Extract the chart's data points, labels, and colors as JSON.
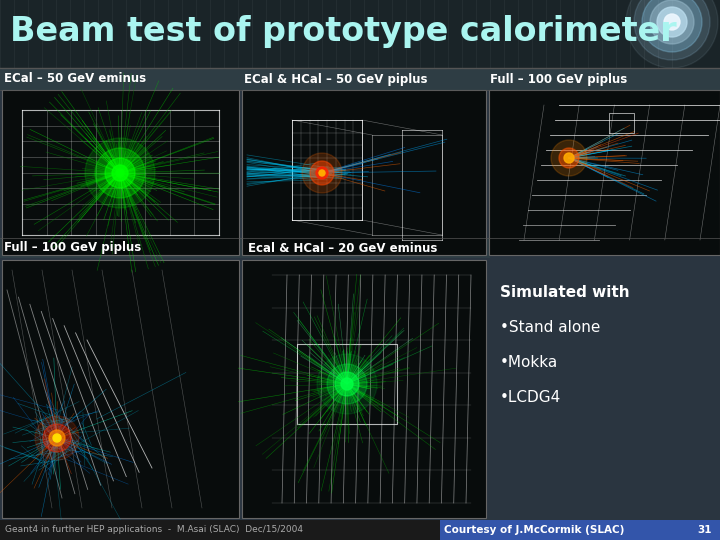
{
  "title": "Beam test of prototype calorimeter",
  "bg_color": "#2a3540",
  "title_bg": "#1e2a30",
  "title_text_color": "#aaf5f0",
  "label_bar_bg": "#2a3540",
  "label_bar_border": "#888888",
  "labels_top": [
    "ECal – 50 GeV eminus",
    "ECal & HCal – 50 GeV piplus",
    "Full – 100 GeV piplus"
  ],
  "labels_bottom": [
    "Full – 100 GeV piplus",
    "Ecal & HCal – 20 GeV eminus"
  ],
  "simulated_with": "Simulated with",
  "bullets": [
    "•Stand alone",
    "•Mokka",
    "•LCDG4"
  ],
  "footer_left": "Geant4 in further HEP applications  -  M.Asai (SLAC)  Dec/15/2004",
  "footer_right": "Courtesy of J.McCormik (SLAC)",
  "page_num": "31",
  "footer_bg_left": "#1a1a1a",
  "footer_bg_right": "#3355aa",
  "label_color": "#ffffff",
  "sim_color": "#ffffff",
  "bullet_color": "#ffffff",
  "footer_left_color": "#aaaaaa",
  "footer_right_color": "#ffffff"
}
